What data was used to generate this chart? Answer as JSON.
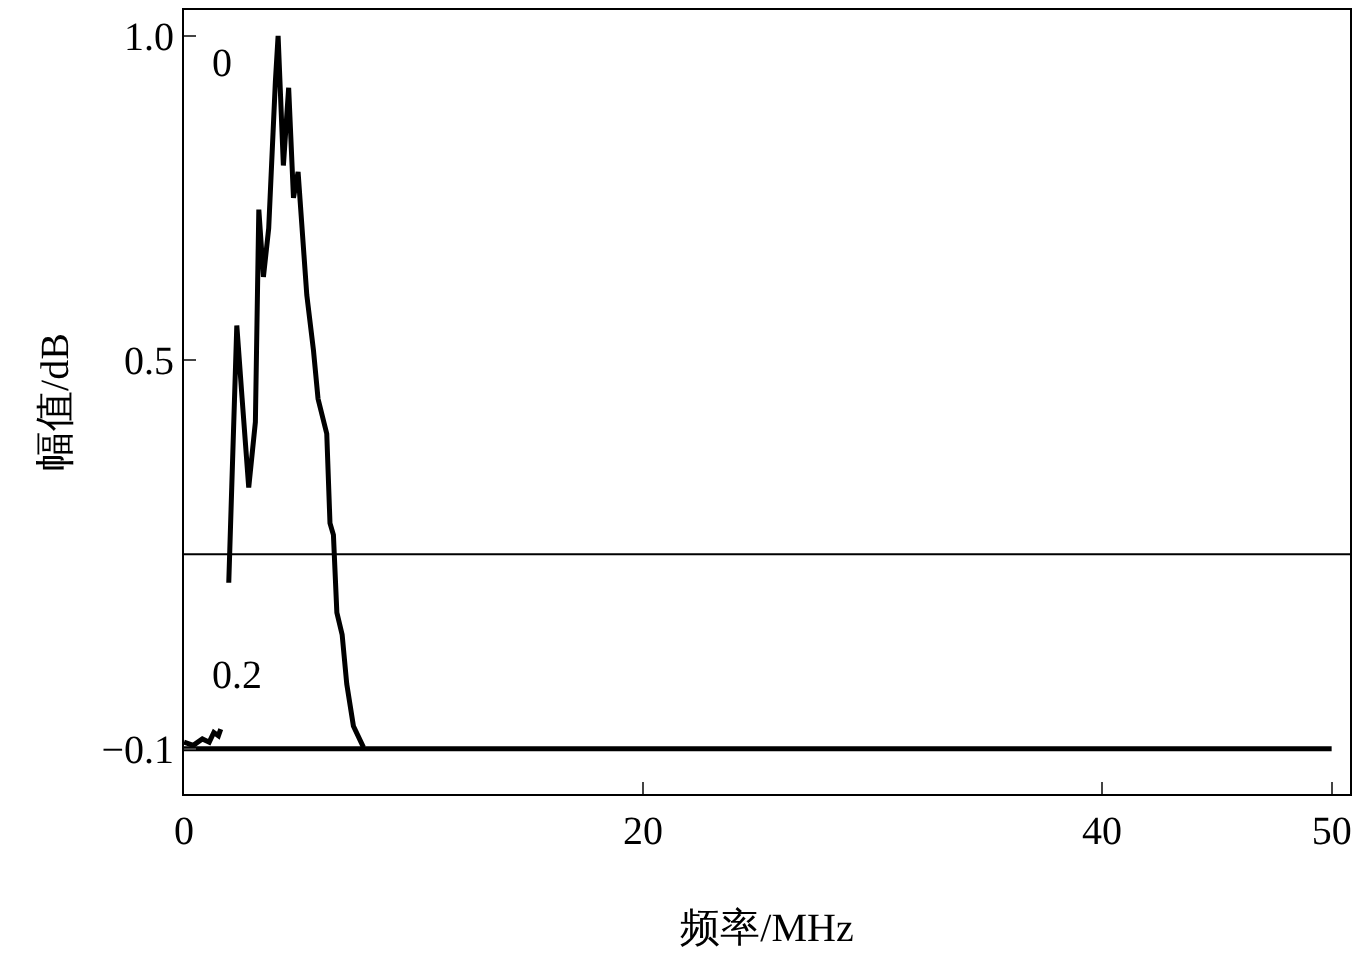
{
  "chart_data": {
    "type": "line",
    "xlabel": "频率/MHz",
    "ylabel": "幅值/dB",
    "xlim": [
      0,
      50.8
    ],
    "xticks": [
      0,
      20,
      40,
      50
    ],
    "ylim": [
      -0.17,
      1.04
    ],
    "yticks": [
      {
        "value": -0.1,
        "label": "−0.1"
      },
      {
        "value": 0.5,
        "label": "0.5"
      },
      {
        "value": 1,
        "label": "1.0"
      }
    ],
    "series": [
      {
        "color": "#000000",
        "x": [
          0,
          50
        ],
        "values": [
          -0.1,
          -0.1
        ]
      },
      {
        "color": "#000000",
        "x": [
          0,
          0.4,
          0.8,
          1.1,
          1.3,
          1.5,
          1.6,
          1.8,
          1.95,
          2.3,
          2.53,
          2.82,
          3.11,
          3.26,
          3.46,
          3.69,
          3.98,
          4.1,
          4.33,
          4.56,
          4.77,
          4.97,
          5.35,
          5.64,
          5.84,
          6.22,
          6.36,
          6.51,
          6.66,
          6.89,
          7.09,
          7.38,
          7.82
        ],
        "values": [
          -0.09,
          -0.095,
          -0.085,
          -0.09,
          -0.075,
          -0.08,
          -0.07,
          null,
          0.156,
          0.553,
          0.441,
          0.303,
          0.404,
          0.732,
          0.628,
          0.703,
          0.929,
          1.0,
          0.8,
          0.92,
          0.75,
          0.79,
          0.6,
          0.515,
          0.44,
          0.386,
          0.248,
          0.23,
          0.11,
          0.076,
          0.0,
          -0.065,
          -0.098
        ]
      }
    ],
    "ref_lines": [
      {
        "axis": "y",
        "value": 0.2,
        "color": "#000000"
      }
    ],
    "annotations": [
      "0",
      "0.2"
    ],
    "marker": "none"
  }
}
